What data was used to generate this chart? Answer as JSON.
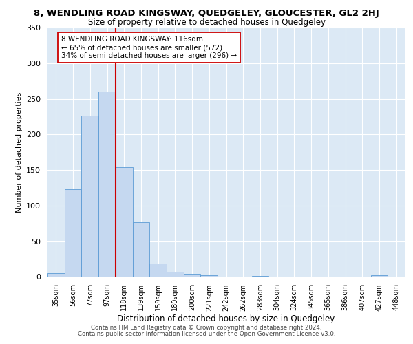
{
  "title_line1": "8, WENDLING ROAD KINGSWAY, QUEDGELEY, GLOUCESTER, GL2 2HJ",
  "title_line2": "Size of property relative to detached houses in Quedgeley",
  "xlabel": "Distribution of detached houses by size in Quedgeley",
  "ylabel": "Number of detached properties",
  "bin_labels": [
    "35sqm",
    "56sqm",
    "77sqm",
    "97sqm",
    "118sqm",
    "139sqm",
    "159sqm",
    "180sqm",
    "200sqm",
    "221sqm",
    "242sqm",
    "262sqm",
    "283sqm",
    "304sqm",
    "324sqm",
    "345sqm",
    "365sqm",
    "386sqm",
    "407sqm",
    "427sqm",
    "448sqm"
  ],
  "bar_values": [
    5,
    123,
    226,
    260,
    154,
    77,
    19,
    7,
    4,
    2,
    0,
    0,
    1,
    0,
    0,
    0,
    0,
    0,
    0,
    2,
    0
  ],
  "bar_color": "#c5d8f0",
  "bar_edge_color": "#5b9bd5",
  "vline_x": 3.5,
  "vline_color": "#cc0000",
  "annotation_text": "8 WENDLING ROAD KINGSWAY: 116sqm\n← 65% of detached houses are smaller (572)\n34% of semi-detached houses are larger (296) →",
  "annotation_box_color": "#ffffff",
  "annotation_box_edge": "#cc0000",
  "ylim": [
    0,
    350
  ],
  "yticks": [
    0,
    50,
    100,
    150,
    200,
    250,
    300,
    350
  ],
  "background_color": "#dce9f5",
  "footer_line1": "Contains HM Land Registry data © Crown copyright and database right 2024.",
  "footer_line2": "Contains public sector information licensed under the Open Government Licence v3.0."
}
